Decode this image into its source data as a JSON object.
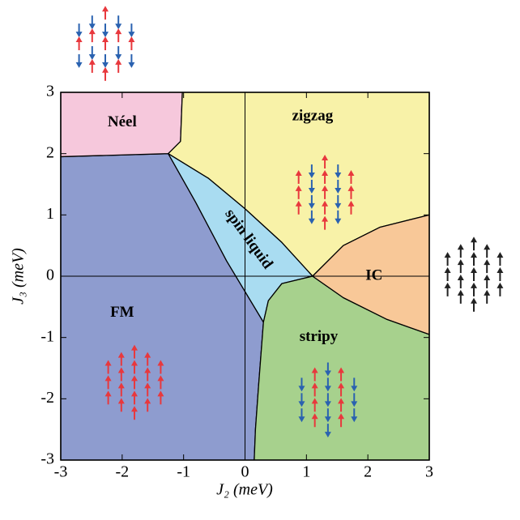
{
  "chart_data": {
    "type": "phase_diagram",
    "x_label": "J₂ (meV)",
    "y_label": "J₃ (meV)",
    "xlim": [
      -3,
      3
    ],
    "ylim": [
      -3,
      3
    ],
    "xticks": [
      -3,
      -2,
      -1,
      0,
      1,
      2,
      3
    ],
    "yticks": [
      -3,
      -2,
      -1,
      0,
      1,
      2,
      3
    ],
    "regions": [
      {
        "name": "FM",
        "color": "#8e9ccf",
        "boundary": [
          [
            -3,
            1.95
          ],
          [
            -1.25,
            2.0
          ],
          [
            -0.8,
            1.2
          ],
          [
            -0.3,
            0.25
          ],
          [
            0.3,
            -0.75
          ],
          [
            0.22,
            -1.8
          ],
          [
            0.17,
            -2.5
          ],
          [
            0.15,
            -3
          ],
          [
            -3,
            -3
          ]
        ]
      },
      {
        "name": "Néel",
        "color": "#f6c8dc",
        "boundary": [
          [
            -3,
            3
          ],
          [
            -1.02,
            3
          ],
          [
            -1.05,
            2.2
          ],
          [
            -1.25,
            2.0
          ],
          [
            -3,
            1.95
          ]
        ]
      },
      {
        "name": "zigzag",
        "color": "#f8f2a8",
        "boundary": [
          [
            -1.02,
            3
          ],
          [
            3,
            3
          ],
          [
            3,
            1.0
          ],
          [
            2.2,
            0.8
          ],
          [
            1.6,
            0.5
          ],
          [
            1.1,
            0
          ],
          [
            0.6,
            0.55
          ],
          [
            0.0,
            1.1
          ],
          [
            -0.6,
            1.6
          ],
          [
            -1.25,
            2.0
          ],
          [
            -1.05,
            2.2
          ]
        ]
      },
      {
        "name": "spin liquid",
        "color": "#a9dcf1",
        "boundary": [
          [
            -1.25,
            2.0
          ],
          [
            -0.6,
            1.6
          ],
          [
            0.0,
            1.1
          ],
          [
            0.6,
            0.55
          ],
          [
            1.1,
            0
          ],
          [
            0.6,
            -0.12
          ],
          [
            0.38,
            -0.4
          ],
          [
            0.3,
            -0.75
          ],
          [
            -0.3,
            0.25
          ],
          [
            -0.8,
            1.2
          ]
        ]
      },
      {
        "name": "stripy",
        "color": "#a7d18d",
        "boundary": [
          [
            0.3,
            -0.75
          ],
          [
            0.38,
            -0.4
          ],
          [
            0.6,
            -0.12
          ],
          [
            1.1,
            0
          ],
          [
            1.6,
            -0.35
          ],
          [
            2.3,
            -0.7
          ],
          [
            3,
            -0.95
          ],
          [
            3,
            -3
          ],
          [
            0.15,
            -3
          ],
          [
            0.17,
            -2.5
          ],
          [
            0.22,
            -1.8
          ]
        ]
      },
      {
        "name": "IC",
        "color": "#f8c898",
        "boundary": [
          [
            1.1,
            0
          ],
          [
            1.6,
            0.5
          ],
          [
            2.2,
            0.8
          ],
          [
            3,
            1.0
          ],
          [
            3,
            -0.95
          ],
          [
            2.3,
            -0.7
          ],
          [
            1.6,
            -0.35
          ]
        ]
      }
    ]
  }
}
